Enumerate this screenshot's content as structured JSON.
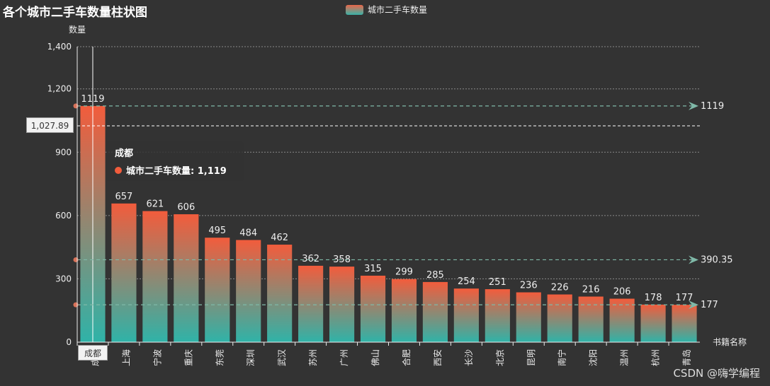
{
  "title": "各个城市二手车数量柱状图",
  "legend_label": "城市二手车数量",
  "watermark": "CSDN @嗨学编程",
  "tooltip": {
    "category": "成都",
    "series_label": "城市二手车数量: 1,119"
  },
  "axis_pointer_y": "1,027.89",
  "axis_pointer_x": "成都",
  "colors": {
    "bar_top": "#f25c3c",
    "bar_bottom": "#2fb3a8",
    "background": "#333333",
    "markline": "#7fb9a8"
  },
  "chart_data": {
    "type": "bar",
    "title": "各个城市二手车数量柱状图",
    "ylabel": "数量",
    "xlabel": "书籍名称",
    "ylim": [
      0,
      1400
    ],
    "yticks": [
      "0",
      "300",
      "600",
      "900",
      "1,200",
      "1,400"
    ],
    "categories": [
      "成都",
      "上海",
      "宁波",
      "重庆",
      "东莞",
      "深圳",
      "武汉",
      "苏州",
      "广州",
      "佛山",
      "合肥",
      "西安",
      "长沙",
      "北京",
      "昆明",
      "南宁",
      "沈阳",
      "温州",
      "杭州",
      "青岛"
    ],
    "series": [
      {
        "name": "城市二手车数量",
        "values": [
          1119,
          657,
          621,
          606,
          495,
          484,
          462,
          362,
          358,
          315,
          299,
          285,
          254,
          251,
          236,
          226,
          216,
          206,
          178,
          177
        ]
      }
    ],
    "mark_lines": [
      {
        "value": 1119,
        "label": "1119"
      },
      {
        "value": 390.35,
        "label": "390.35"
      },
      {
        "value": 177,
        "label": "177"
      }
    ],
    "grid": true,
    "legend_position": "top-center"
  }
}
